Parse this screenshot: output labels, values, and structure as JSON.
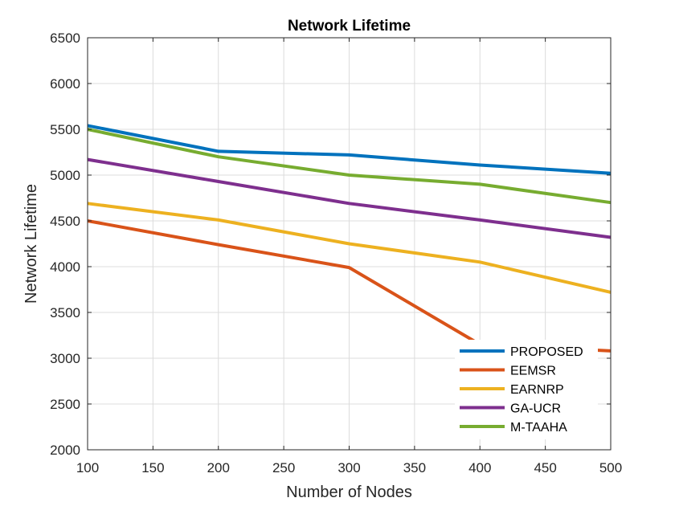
{
  "chart_data": {
    "type": "line",
    "title": "Network Lifetime",
    "xlabel": "Number of Nodes",
    "ylabel": "Network Lifetime",
    "x": [
      100,
      200,
      300,
      400,
      500
    ],
    "xlim": [
      100,
      500
    ],
    "ylim": [
      2000,
      6500
    ],
    "xticks": [
      100,
      150,
      200,
      250,
      300,
      350,
      400,
      450,
      500
    ],
    "yticks": [
      2000,
      2500,
      3000,
      3500,
      4000,
      4500,
      5000,
      5500,
      6000,
      6500
    ],
    "grid": true,
    "legend_position": "bottom-right",
    "series": [
      {
        "name": "PROPOSED",
        "color": "#0072BD",
        "values": [
          5540,
          5260,
          5220,
          5110,
          5020
        ]
      },
      {
        "name": "EEMSR",
        "color": "#D95319",
        "values": [
          4500,
          4240,
          3990,
          3150,
          3080
        ]
      },
      {
        "name": "EARNRP",
        "color": "#EDB120",
        "values": [
          4690,
          4510,
          4250,
          4050,
          3720
        ]
      },
      {
        "name": "GA-UCR",
        "color": "#7E2F8E",
        "values": [
          5170,
          4930,
          4690,
          4510,
          4320
        ]
      },
      {
        "name": "M-TAAHA",
        "color": "#77AC30",
        "values": [
          5500,
          5200,
          5000,
          4900,
          4700
        ]
      }
    ]
  }
}
